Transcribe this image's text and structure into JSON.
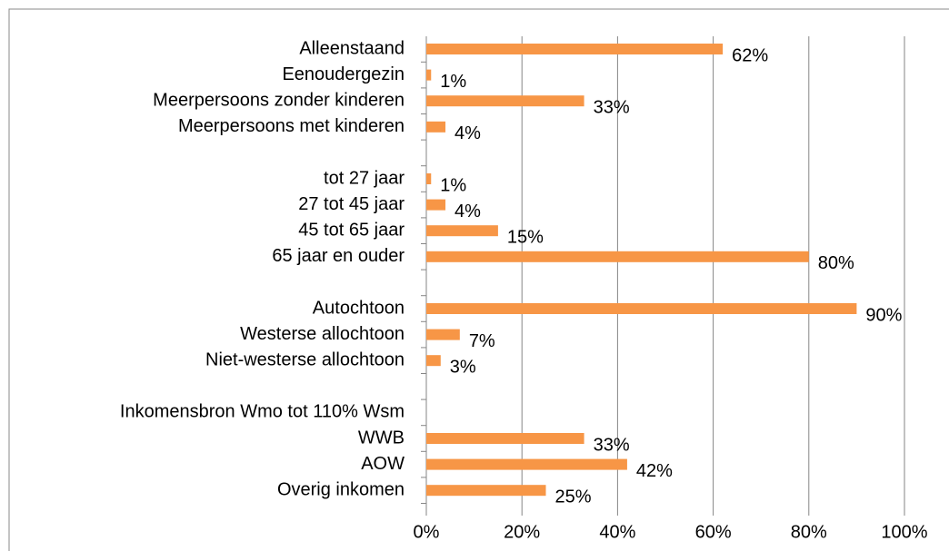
{
  "chart_data": {
    "type": "bar",
    "orientation": "horizontal",
    "categories": [
      "Alleenstaand",
      "Eenoudergezin",
      "Meerpersoons zonder kinderen",
      "Meerpersoons met kinderen",
      null,
      "tot 27 jaar",
      "27 tot 45 jaar",
      "45 tot 65 jaar",
      "65 jaar en ouder",
      null,
      "Autochtoon",
      "Westerse allochtoon",
      "Niet-westerse allochtoon",
      null,
      "Inkomensbron Wmo tot 110% Wsm",
      "WWB",
      "AOW",
      "Overig inkomen"
    ],
    "values": [
      62,
      1,
      33,
      4,
      null,
      1,
      4,
      15,
      80,
      null,
      90,
      7,
      3,
      null,
      null,
      33,
      42,
      25
    ],
    "value_labels": [
      "62%",
      "1%",
      "33%",
      "4%",
      null,
      "1%",
      "4%",
      "15%",
      "80%",
      null,
      "90%",
      "7%",
      "3%",
      null,
      null,
      "33%",
      "42%",
      "25%"
    ],
    "color": "#f79646",
    "xlim": [
      0,
      100
    ],
    "xticks": [
      {
        "value": 0,
        "label": "0%"
      },
      {
        "value": 20,
        "label": "20%"
      },
      {
        "value": 40,
        "label": "40%"
      },
      {
        "value": 60,
        "label": "60%"
      },
      {
        "value": 80,
        "label": "80%"
      },
      {
        "value": 100,
        "label": "100%"
      }
    ],
    "grid": true
  }
}
